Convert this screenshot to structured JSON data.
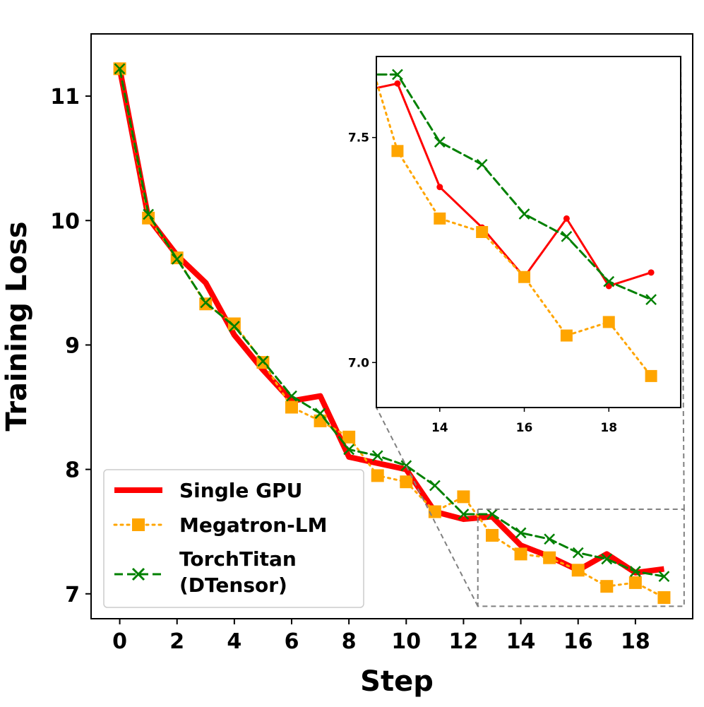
{
  "chart_data": {
    "type": "line",
    "xlabel": "Step",
    "ylabel": "Training Loss",
    "xlim": [
      -1,
      20
    ],
    "ylim": [
      6.8,
      11.5
    ],
    "xticks": [
      0,
      2,
      4,
      6,
      8,
      10,
      12,
      14,
      16,
      18
    ],
    "xtick_labels": [
      "0",
      "2",
      "4",
      "6",
      "8",
      "10",
      "12",
      "14",
      "16",
      "18"
    ],
    "yticks": [
      7,
      8,
      9,
      10,
      11
    ],
    "ytick_labels": [
      "7",
      "8",
      "9",
      "10",
      "11"
    ],
    "legend_position": "lower-left",
    "series": [
      {
        "name": "Single GPU",
        "color": "#ff0000",
        "style": "solid",
        "x": [
          0,
          1,
          2,
          3,
          4,
          5,
          6,
          7,
          8,
          9,
          10,
          11,
          12,
          13,
          14,
          15,
          16,
          17,
          18,
          19
        ],
        "values": [
          11.22,
          10.02,
          9.72,
          9.5,
          9.08,
          8.8,
          8.55,
          8.59,
          8.1,
          8.05,
          8.0,
          7.66,
          7.6,
          7.62,
          7.39,
          7.3,
          7.19,
          7.32,
          7.17,
          7.2
        ]
      },
      {
        "name": "Megatron-LM",
        "color": "#ffa500",
        "style": "dotted",
        "x": [
          0,
          1,
          2,
          3,
          4,
          5,
          6,
          7,
          8,
          9,
          10,
          11,
          12,
          13,
          14,
          15,
          16,
          17,
          18,
          19
        ],
        "values": [
          11.22,
          10.02,
          9.7,
          9.33,
          9.17,
          8.86,
          8.5,
          8.39,
          8.26,
          7.95,
          7.9,
          7.66,
          7.78,
          7.47,
          7.32,
          7.29,
          7.19,
          7.06,
          7.09,
          6.97
        ]
      },
      {
        "name": "TorchTitan\n(DTensor)",
        "color": "#008000",
        "style": "dashed",
        "x": [
          0,
          1,
          2,
          3,
          4,
          5,
          6,
          7,
          8,
          9,
          10,
          11,
          12,
          13,
          14,
          15,
          16,
          17,
          18,
          19
        ],
        "values": [
          11.22,
          10.05,
          9.69,
          9.34,
          9.15,
          8.87,
          8.59,
          8.45,
          8.16,
          8.11,
          8.03,
          7.87,
          7.64,
          7.64,
          7.49,
          7.44,
          7.33,
          7.28,
          7.18,
          7.14
        ]
      }
    ],
    "legend_labels": [
      "Single GPU",
      "Megatron-LM",
      "TorchTitan",
      "(DTensor)"
    ],
    "inset": {
      "xlim": [
        12.5,
        19.7
      ],
      "ylim": [
        6.9,
        7.68
      ],
      "xticks": [
        14,
        16,
        18
      ],
      "xtick_labels": [
        "14",
        "16",
        "18"
      ],
      "yticks": [
        7.0,
        7.5
      ],
      "ytick_labels": [
        "7.0",
        "7.5"
      ]
    }
  }
}
